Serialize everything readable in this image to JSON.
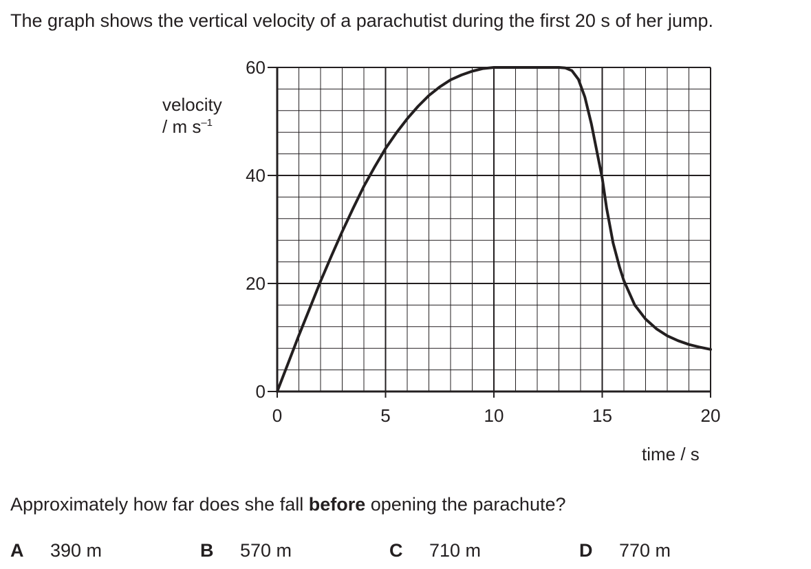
{
  "question": {
    "intro": "The graph shows the vertical velocity of a parachutist during the first 20 s of her jump.",
    "prompt_before": "Approximately how far does she fall ",
    "prompt_bold": "before",
    "prompt_after": " opening the parachute?"
  },
  "options": [
    {
      "letter": "A",
      "text": "390 m"
    },
    {
      "letter": "B",
      "text": "570 m"
    },
    {
      "letter": "C",
      "text": "710 m"
    },
    {
      "letter": "D",
      "text": "770 m"
    }
  ],
  "chart_data": {
    "type": "line",
    "ylabel_line1": "velocity",
    "ylabel_unit": "/ m s",
    "ylabel_exp": "–1",
    "xlabel": "time / s",
    "xlim": [
      0,
      20
    ],
    "ylim": [
      0,
      60
    ],
    "x_ticks": [
      0,
      5,
      10,
      15,
      20
    ],
    "y_ticks": [
      0,
      20,
      40,
      60
    ],
    "grid": true,
    "x_minor_step": 1,
    "y_minor_step": 4,
    "x_major_step": 5,
    "y_major_step": 20,
    "series": [
      {
        "points": [
          [
            0,
            0
          ],
          [
            0.5,
            5.2
          ],
          [
            1,
            10.4
          ],
          [
            1.5,
            15.4
          ],
          [
            2,
            20.4
          ],
          [
            2.5,
            25.1
          ],
          [
            3,
            29.6
          ],
          [
            3.5,
            33.9
          ],
          [
            4,
            38
          ],
          [
            4.5,
            41.6
          ],
          [
            5,
            45
          ],
          [
            5.5,
            47.9
          ],
          [
            6,
            50.5
          ],
          [
            6.5,
            52.8
          ],
          [
            7,
            54.8
          ],
          [
            7.5,
            56.4
          ],
          [
            8,
            57.7
          ],
          [
            8.5,
            58.6
          ],
          [
            9,
            59.3
          ],
          [
            9.5,
            59.8
          ],
          [
            10,
            60
          ],
          [
            11,
            60
          ],
          [
            12,
            60
          ],
          [
            13,
            60
          ],
          [
            13.3,
            59.9
          ],
          [
            13.6,
            59.4
          ],
          [
            13.9,
            57.8
          ],
          [
            14.2,
            54.5
          ],
          [
            14.5,
            49.5
          ],
          [
            14.8,
            43.5
          ],
          [
            15,
            39.5
          ],
          [
            15.2,
            34
          ],
          [
            15.5,
            27.5
          ],
          [
            15.8,
            23
          ],
          [
            16,
            20.5
          ],
          [
            16.5,
            16
          ],
          [
            17,
            13.4
          ],
          [
            17.5,
            11.6
          ],
          [
            18,
            10.3
          ],
          [
            18.5,
            9.4
          ],
          [
            19,
            8.7
          ],
          [
            19.5,
            8.2
          ],
          [
            20,
            7.8
          ]
        ]
      }
    ]
  }
}
